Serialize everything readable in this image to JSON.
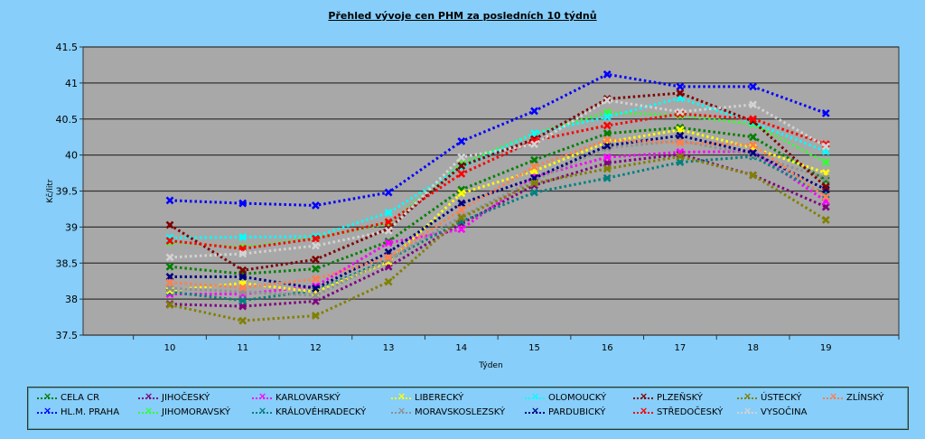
{
  "chart_data": {
    "type": "line",
    "title": "Přehled vývoje cen PHM za posledních 10 týdnů",
    "xlabel": "Týden",
    "ylabel": "Kč/litr",
    "ylim": [
      37.5,
      41.5
    ],
    "yticks": [
      "37.5",
      "38",
      "38.5",
      "39",
      "39.5",
      "40",
      "40.5",
      "41",
      "41.5"
    ],
    "grid": true,
    "legend_position": "bottom",
    "x": [
      "10",
      "11",
      "12",
      "13",
      "14",
      "15",
      "16",
      "17",
      "18",
      "19"
    ],
    "series": [
      {
        "name": "CELA CR",
        "color": "#008000",
        "values": [
          38.45,
          38.35,
          38.42,
          38.8,
          39.52,
          39.93,
          40.3,
          40.38,
          40.25,
          39.65
        ]
      },
      {
        "name": "HL.M. PRAHA",
        "color": "#0000ff",
        "values": [
          39.37,
          39.33,
          39.3,
          39.48,
          40.19,
          40.61,
          41.12,
          40.95,
          40.95,
          40.58
        ]
      },
      {
        "name": "JIHOČESKÝ",
        "color": "#800080",
        "values": [
          37.93,
          37.9,
          37.97,
          38.45,
          39.05,
          39.58,
          39.89,
          40.01,
          39.72,
          39.28
        ]
      },
      {
        "name": "JIHOMORAVSKÝ",
        "color": "#33ff33",
        "values": [
          38.79,
          38.72,
          38.85,
          39.05,
          39.88,
          40.3,
          40.59,
          40.55,
          40.43,
          39.9
        ]
      },
      {
        "name": "KARLOVARSKÝ",
        "color": "#ff00ff",
        "values": [
          38.07,
          38.07,
          38.18,
          38.78,
          38.97,
          39.7,
          39.97,
          40.04,
          40.05,
          39.36
        ]
      },
      {
        "name": "KRÁLOVÉHRADECKÝ",
        "color": "#008080",
        "values": [
          38.1,
          37.98,
          38.12,
          38.55,
          39.08,
          39.48,
          39.68,
          39.9,
          39.98,
          39.45
        ]
      },
      {
        "name": "LIBERECKÝ",
        "color": "#ffff00",
        "values": [
          38.12,
          38.22,
          38.1,
          38.52,
          39.47,
          39.78,
          40.18,
          40.35,
          40.1,
          39.75
        ]
      },
      {
        "name": "MORAVSKOSLEZSKÝ",
        "color": "#909090",
        "values": [
          38.15,
          38.1,
          38.05,
          38.55,
          39.15,
          39.65,
          40.1,
          40.2,
          40.0,
          39.68
        ]
      },
      {
        "name": "OLOMOUCKÝ",
        "color": "#00ffff",
        "values": [
          38.85,
          38.86,
          38.87,
          39.2,
          39.83,
          40.3,
          40.53,
          40.79,
          40.45,
          40.05
        ]
      },
      {
        "name": "PARDUBICKÝ",
        "color": "#000080",
        "values": [
          38.31,
          38.31,
          38.15,
          38.65,
          39.33,
          39.68,
          40.13,
          40.27,
          40.03,
          39.52
        ]
      },
      {
        "name": "PLZEŇSKÝ",
        "color": "#800000",
        "values": [
          39.03,
          38.4,
          38.55,
          38.98,
          39.85,
          40.22,
          40.78,
          40.86,
          40.47,
          39.56
        ]
      },
      {
        "name": "STŘEDOČESKÝ",
        "color": "#ff0000",
        "values": [
          38.81,
          38.7,
          38.84,
          39.07,
          39.74,
          40.2,
          40.41,
          40.57,
          40.5,
          40.15
        ]
      },
      {
        "name": "ÚSTECKÝ",
        "color": "#808000",
        "values": [
          37.92,
          37.7,
          37.77,
          38.24,
          39.13,
          39.61,
          39.81,
          39.98,
          39.72,
          39.1
        ]
      },
      {
        "name": "VYSOČINA",
        "color": "#d3d3d3",
        "values": [
          38.58,
          38.63,
          38.74,
          38.95,
          39.97,
          40.15,
          40.76,
          40.6,
          40.7,
          40.12
        ]
      },
      {
        "name": "ZLÍNSKÝ",
        "color": "#ff7f50",
        "values": [
          38.23,
          38.16,
          38.28,
          38.58,
          39.24,
          39.84,
          40.21,
          40.17,
          40.14,
          39.42
        ]
      }
    ],
    "legend_layout": [
      [
        "CELA CR",
        "JIHOČESKÝ",
        "KARLOVARSKÝ",
        "LIBERECKÝ",
        "OLOMOUCKÝ",
        "PLZEŇSKÝ",
        "ÚSTECKÝ",
        "ZLÍNSKÝ"
      ],
      [
        "HL.M. PRAHA",
        "JIHOMORAVSKÝ",
        "KRÁLOVÉHRADECKÝ",
        "MORAVSKOSLEZSKÝ",
        "PARDUBICKÝ",
        "STŘEDOČESKÝ",
        "VYSOČINA"
      ]
    ]
  }
}
